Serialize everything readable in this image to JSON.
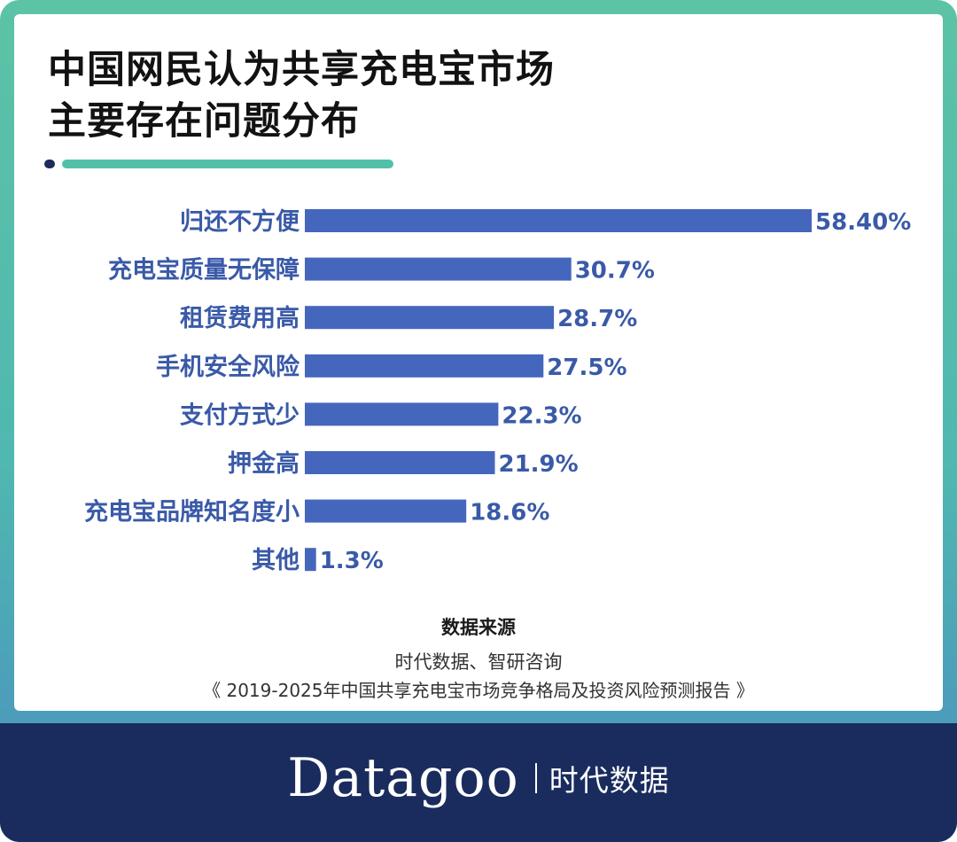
{
  "title": {
    "line1": "中国网民认为共享充电宝市场",
    "line2": "主要存在问题分布"
  },
  "colors": {
    "bar": "#4566bd",
    "label": "#3a5aa8",
    "accent": "#52c0a8",
    "footer": "#1a2c5e"
  },
  "chart_data": {
    "type": "bar",
    "orientation": "horizontal",
    "categories": [
      "归还不方便",
      "充电宝质量无保障",
      "租赁费用高",
      "手机安全风险",
      "支付方式少",
      "押金高",
      "充电宝品牌知名度小",
      "其他"
    ],
    "values": [
      58.4,
      30.7,
      28.7,
      27.5,
      22.3,
      21.9,
      18.6,
      1.3
    ],
    "value_labels": [
      "58.40%",
      "30.7%",
      "28.7%",
      "27.5%",
      "22.3%",
      "21.9%",
      "18.6%",
      "1.3%"
    ],
    "unit": "%",
    "xlim": [
      0,
      58.4
    ],
    "grid": false,
    "legend": "none"
  },
  "source": {
    "title": "数据来源",
    "line1": "时代数据、智研咨询",
    "line2": "《 2019-2025年中国共享充电宝市场竞争格局及投资风险预测报告 》"
  },
  "footer": {
    "brand": "Datagoo",
    "tagline": "时代数据"
  }
}
